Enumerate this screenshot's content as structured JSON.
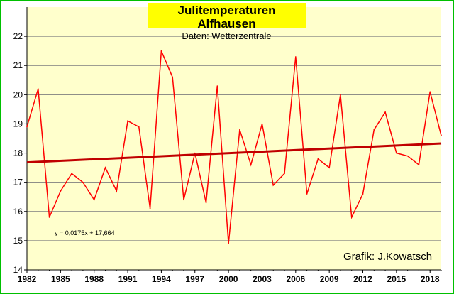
{
  "chart_data": {
    "type": "line",
    "title": "Julitemperaturen Alfhausen",
    "subtitle": "Daten:  Wetterzentrale",
    "credit": "Grafik: J.Kowatsch",
    "trend_equation": "y = 0,0175x + 17,664",
    "x": [
      1982,
      1983,
      1984,
      1985,
      1986,
      1987,
      1988,
      1989,
      1990,
      1991,
      1992,
      1993,
      1994,
      1995,
      1996,
      1997,
      1998,
      1999,
      2000,
      2001,
      2002,
      2003,
      2004,
      2005,
      2006,
      2007,
      2008,
      2009,
      2010,
      2011,
      2012,
      2013,
      2014,
      2015,
      2016,
      2017,
      2018,
      2019
    ],
    "series": [
      {
        "color": "#ff0000",
        "values": [
          18.9,
          20.2,
          15.8,
          16.7,
          17.3,
          17.0,
          16.4,
          17.5,
          16.7,
          19.1,
          18.9,
          16.1,
          21.5,
          20.6,
          16.4,
          18.0,
          16.3,
          20.3,
          14.9,
          18.8,
          17.6,
          19.0,
          16.9,
          17.3,
          21.3,
          16.6,
          17.8,
          17.5,
          20.0,
          15.8,
          16.6,
          18.8,
          19.4,
          18.0,
          17.9,
          17.6,
          20.1,
          18.6
        ]
      }
    ],
    "trend": {
      "color": "#c00000",
      "slope": 0.0175,
      "intercept": 17.664
    },
    "x_ticks": [
      "1982",
      "1985",
      "1988",
      "1991",
      "1994",
      "1997",
      "2000",
      "2003",
      "2006",
      "2009",
      "2012",
      "2015",
      "2018"
    ],
    "y_ticks": [
      "14",
      "15",
      "16",
      "17",
      "18",
      "19",
      "20",
      "21",
      "22"
    ],
    "ylim": [
      14,
      23
    ],
    "grid": true,
    "plot_background": "#ffffcc",
    "grid_color": "#7f7f7f"
  }
}
